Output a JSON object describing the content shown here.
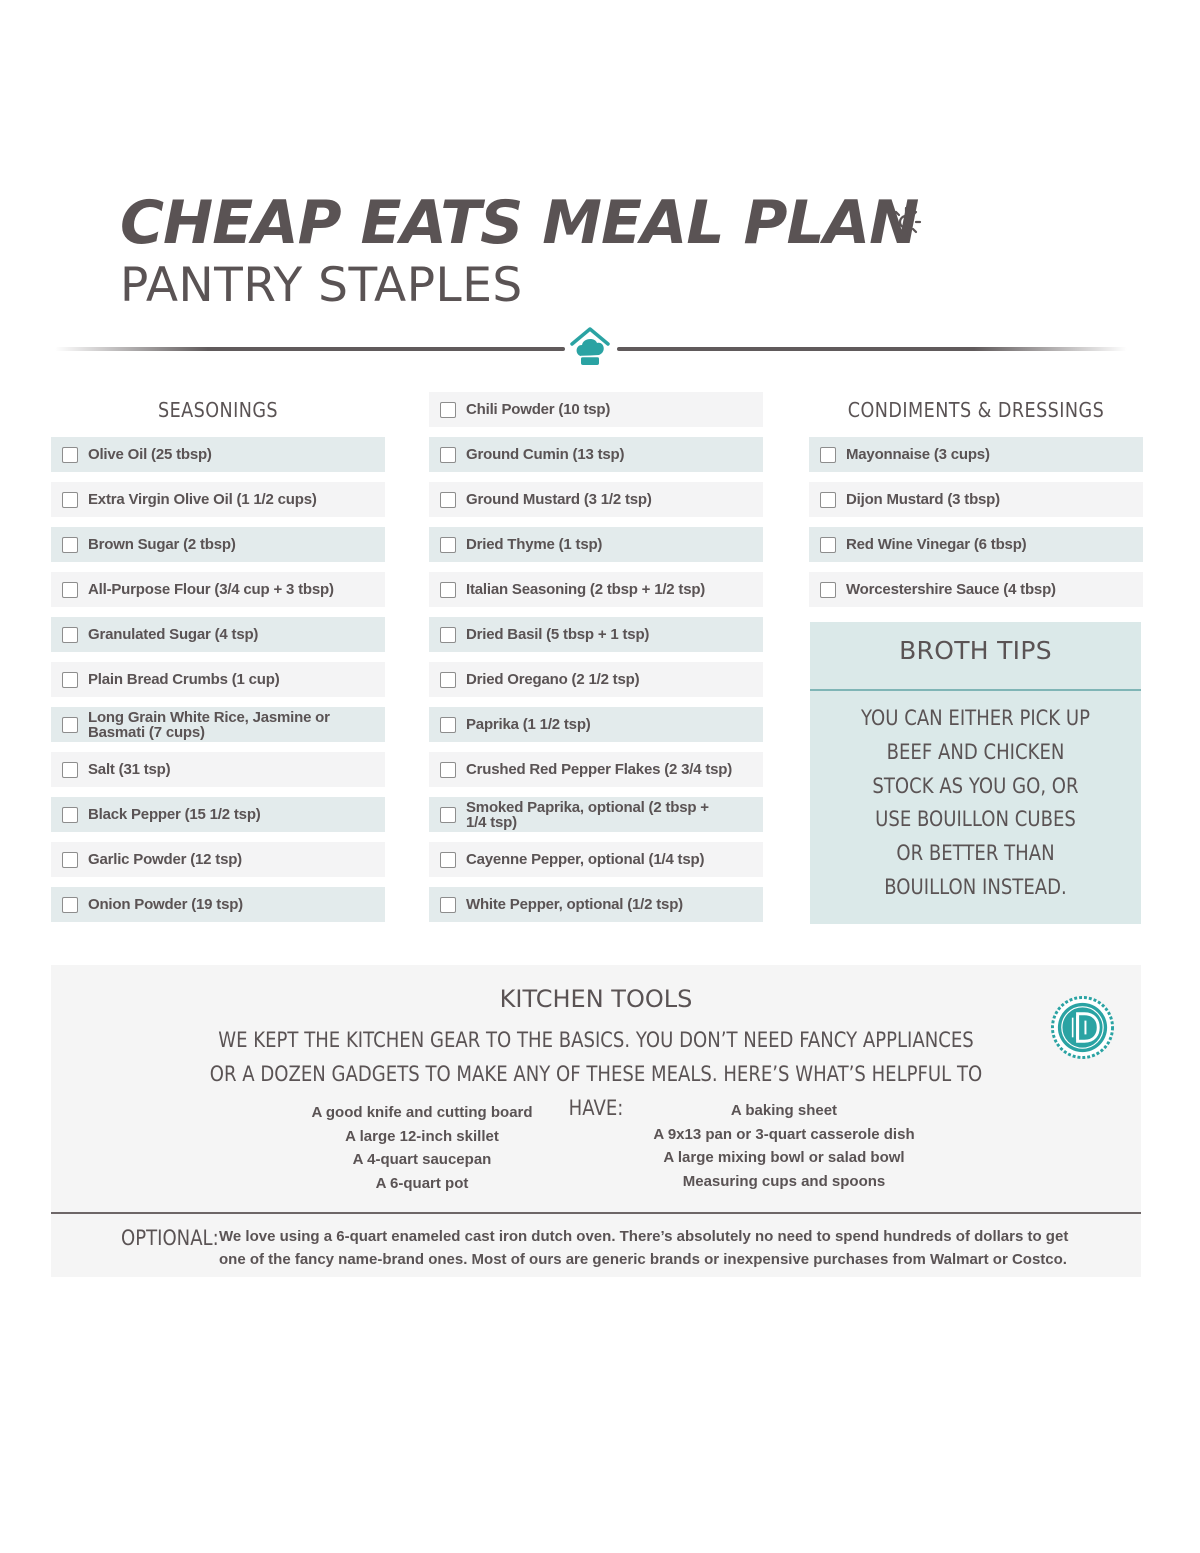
{
  "header": {
    "title": "CHEAP EATS MEAL PLAN",
    "subtitle": "PANTRY STAPLES"
  },
  "colors": {
    "text": "#5a5354",
    "accent": "#2aa3a3",
    "row_tint": "#e3ebec",
    "row_plain": "#f4f4f5",
    "panel": "#dbe9e9"
  },
  "seasonings": {
    "heading": "SEASONINGS",
    "items": [
      "Olive Oil (25 tbsp)",
      "Extra Virgin Olive Oil (1 1/2 cups)",
      "Brown Sugar (2 tbsp)",
      "All-Purpose Flour (3/4 cup + 3 tbsp)",
      "Granulated Sugar (4 tsp)",
      "Plain Bread Crumbs (1 cup)",
      "Long Grain White Rice, Jasmine or Basmati (7 cups)",
      "Salt (31 tsp)",
      "Black Pepper (15 1/2 tsp)",
      "Garlic Powder (12 tsp)",
      "Onion Powder (19 tsp)"
    ]
  },
  "spices": {
    "items": [
      "Chili Powder (10 tsp)",
      "Ground Cumin (13 tsp)",
      "Ground Mustard (3 1/2 tsp)",
      "Dried Thyme (1 tsp)",
      "Italian Seasoning (2 tbsp + 1/2 tsp)",
      "Dried Basil (5 tbsp + 1 tsp)",
      "Dried Oregano (2 1/2 tsp)",
      "Paprika (1 1/2 tsp)",
      "Crushed Red Pepper Flakes (2 3/4 tsp)",
      "Smoked Paprika, optional (2 tbsp + 1/4 tsp)",
      "Cayenne Pepper, optional (1/4 tsp)",
      "White Pepper, optional (1/2 tsp)"
    ]
  },
  "condiments": {
    "heading": "CONDIMENTS & DRESSINGS",
    "items": [
      "Mayonnaise (3 cups)",
      "Dijon Mustard (3 tbsp)",
      "Red Wine Vinegar (6 tbsp)",
      "Worcestershire Sauce (4 tbsp)"
    ]
  },
  "broth_tips": {
    "heading": "BROTH TIPS",
    "text": "YOU CAN EITHER PICK UP BEEF AND CHICKEN STOCK AS YOU GO, OR USE BOUILLON CUBES OR BETTER THAN BOUILLON INSTEAD."
  },
  "kitchen_tools": {
    "heading": "KITCHEN TOOLS",
    "intro": "WE KEPT THE KITCHEN GEAR TO THE BASICS. YOU DON’T NEED FANCY APPLIANCES OR A DOZEN GADGETS TO MAKE ANY OF THESE MEALS. HERE’S WHAT’S HELPFUL TO HAVE:",
    "left": [
      "A good knife and cutting board",
      "A large 12-inch skillet",
      "A 4-quart saucepan",
      "A 6-quart pot"
    ],
    "right": [
      "A baking sheet",
      "A 9x13 pan or 3-quart casserole dish",
      "A large mixing bowl or salad bowl",
      "Measuring cups and spoons"
    ],
    "optional_label": "OPTIONAL:",
    "optional_text": "We love using a 6-quart enameled cast iron dutch oven. There’s absolutely no need to spend hundreds of dollars to get one of the fancy name-brand ones. Most of ours are generic brands or inexpensive purchases from Walmart or Costco."
  },
  "icons": [
    "sun-icon",
    "chef-hat-home-icon",
    "badge-logo-icon",
    "checkbox-icon"
  ]
}
